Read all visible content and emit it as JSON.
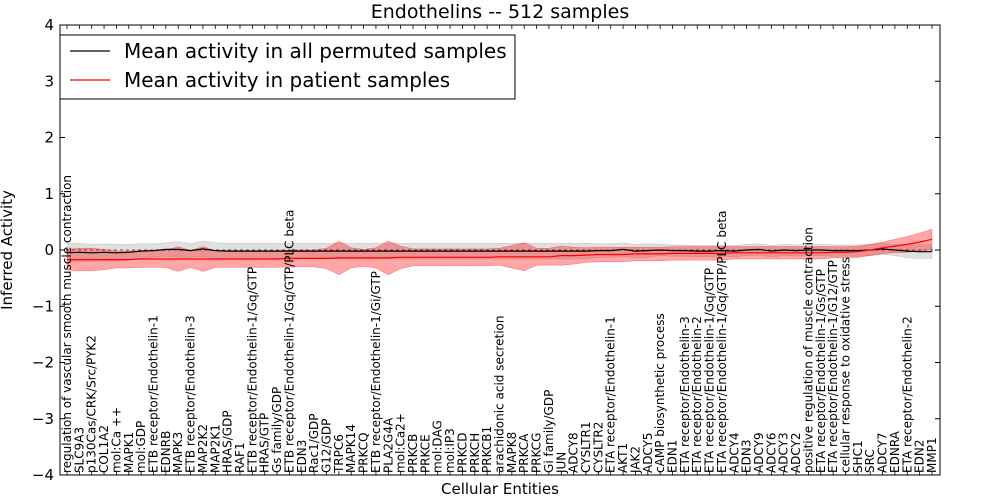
{
  "chart_data": {
    "type": "line",
    "title": "Endothelins -- 512 samples",
    "xlabel": "Cellular Entities",
    "ylabel": "Inferred Activity",
    "ylim": [
      -4,
      4
    ],
    "yticks": [
      -4,
      -3,
      -2,
      -1,
      0,
      1,
      2,
      3,
      4
    ],
    "ytick_labels": [
      "−4",
      "−3",
      "−2",
      "−1",
      "0",
      "1",
      "2",
      "3",
      "4"
    ],
    "legend": {
      "location": "top-left",
      "entries": [
        {
          "label": "Mean activity in all permuted samples",
          "color": "#000000"
        },
        {
          "label": "Mean activity in patient samples",
          "color": "#ff0000"
        }
      ]
    },
    "categories": [
      "regulation of vascular smooth muscle contraction",
      "SLC9A3",
      "p130Cas/CRK/Src/PYK2",
      "COL1A2",
      "mol:Ca ++",
      "MAPK1",
      "mol:GDP",
      "ETB receptor/Endothelin-1",
      "EDNRB",
      "MAPK3",
      "ETB receptor/Endothelin-3",
      "MAP2K2",
      "MAP2K1",
      "HRAS/GDP",
      "RAF1",
      "ETB receptor/Endothelin-1/Gq/GTP",
      "HRAS/GTP",
      "Gs family/GDP",
      "ETB receptor/Endothelin-1/Gq/GTP/PLC beta",
      "EDN3",
      "Rac1/GDP",
      "G12/GDP",
      "TRPC6",
      "MAPK14",
      "PRKCQ",
      "ETB receptor/Endothelin-1/Gi/GTP",
      "PLA2G4A",
      "mol:Ca2+",
      "PRKCB",
      "PRKCE",
      "mol:DAG",
      "mol:IP3",
      "PRKCD",
      "PRKCH",
      "PRKCB1",
      "arachidonic acid secretion",
      "MAPK8",
      "PRKCA",
      "PRKCG",
      "Gi family/GDP",
      "JUN",
      "ADCY8",
      "CYSLTR1",
      "CYSLTR2",
      "ETA receptor/Endothelin-1",
      "AKT1",
      "JAK2",
      "ADCY5",
      "cAMP biosynthetic process",
      "EDN1",
      "ETA receptor/Endothelin-3",
      "ETA receptor/Endothelin-2",
      "ETA receptor/Endothelin-1/Gq/GTP",
      "ETA receptor/Endothelin-1/Gq/GTP/PLC beta",
      "ADCY4",
      "EDN3",
      "ADCY9",
      "ADCY6",
      "ADCY3",
      "ADCY2",
      "positive regulation of muscle contraction",
      "ETA receptor/Endothelin-1/Gs/GTP",
      "ETA receptor/Endothelin-1/G12/GTP",
      "cellular response to oxidative stress",
      "SHC1",
      "SRC",
      "ADCY7",
      "EDNRA",
      "ETA receptor/Endothelin-2",
      "EDN2",
      "MMP1"
    ],
    "series": [
      {
        "name": "Mean activity in all permuted samples",
        "color": "#000000",
        "band_color": "#999999",
        "values": [
          -0.05,
          -0.04,
          -0.05,
          -0.04,
          -0.05,
          -0.04,
          -0.02,
          -0.01,
          0.01,
          0.01,
          -0.01,
          0.02,
          -0.01,
          -0.02,
          -0.02,
          -0.02,
          -0.02,
          -0.02,
          -0.02,
          -0.02,
          -0.02,
          -0.02,
          -0.02,
          -0.02,
          -0.02,
          -0.02,
          -0.02,
          -0.02,
          -0.02,
          -0.02,
          -0.02,
          -0.02,
          -0.02,
          -0.02,
          -0.02,
          -0.02,
          -0.02,
          -0.02,
          -0.02,
          -0.02,
          -0.02,
          -0.02,
          -0.02,
          -0.01,
          -0.01,
          0.01,
          -0.02,
          -0.01,
          0.0,
          -0.01,
          -0.01,
          -0.02,
          -0.02,
          -0.01,
          -0.02,
          0.0,
          0.01,
          -0.02,
          0.0,
          -0.01,
          0.0,
          0.0,
          -0.01,
          -0.01,
          -0.01,
          0.0,
          0.02,
          0.0,
          -0.02,
          -0.03,
          -0.03
        ],
        "spread": [
          0.17,
          0.16,
          0.15,
          0.15,
          0.15,
          0.14,
          0.13,
          0.12,
          0.12,
          0.14,
          0.12,
          0.14,
          0.14,
          0.14,
          0.14,
          0.14,
          0.14,
          0.14,
          0.14,
          0.14,
          0.14,
          0.14,
          0.14,
          0.14,
          0.14,
          0.14,
          0.14,
          0.14,
          0.14,
          0.14,
          0.14,
          0.14,
          0.14,
          0.14,
          0.14,
          0.14,
          0.14,
          0.14,
          0.14,
          0.14,
          0.14,
          0.14,
          0.14,
          0.12,
          0.12,
          0.12,
          0.12,
          0.12,
          0.1,
          0.1,
          0.1,
          0.1,
          0.1,
          0.1,
          0.1,
          0.1,
          0.1,
          0.1,
          0.1,
          0.1,
          0.1,
          0.1,
          0.1,
          0.1,
          0.1,
          0.1,
          0.1,
          0.1,
          0.12,
          0.12,
          0.12
        ]
      },
      {
        "name": "Mean activity in patient samples",
        "color": "#ff0000",
        "band_color": "#ff0000",
        "values": [
          -0.17,
          -0.17,
          -0.17,
          -0.17,
          -0.17,
          -0.17,
          -0.16,
          -0.16,
          -0.16,
          -0.16,
          -0.16,
          -0.16,
          -0.16,
          -0.16,
          -0.16,
          -0.16,
          -0.16,
          -0.16,
          -0.15,
          -0.15,
          -0.15,
          -0.15,
          -0.14,
          -0.14,
          -0.14,
          -0.14,
          -0.14,
          -0.13,
          -0.13,
          -0.13,
          -0.13,
          -0.13,
          -0.13,
          -0.13,
          -0.13,
          -0.12,
          -0.12,
          -0.12,
          -0.12,
          -0.12,
          -0.1,
          -0.1,
          -0.09,
          -0.08,
          -0.08,
          -0.08,
          -0.07,
          -0.07,
          -0.07,
          -0.06,
          -0.06,
          -0.06,
          -0.06,
          -0.06,
          -0.05,
          -0.05,
          -0.05,
          -0.05,
          -0.05,
          -0.05,
          -0.05,
          -0.05,
          -0.04,
          -0.04,
          -0.03,
          0.0,
          0.04,
          0.07,
          0.1,
          0.14,
          0.19
        ],
        "spread": [
          0.18,
          0.2,
          0.2,
          0.18,
          0.15,
          0.15,
          0.15,
          0.15,
          0.15,
          0.22,
          0.15,
          0.22,
          0.15,
          0.15,
          0.15,
          0.15,
          0.15,
          0.15,
          0.15,
          0.15,
          0.15,
          0.18,
          0.3,
          0.18,
          0.15,
          0.18,
          0.3,
          0.2,
          0.15,
          0.15,
          0.15,
          0.15,
          0.15,
          0.15,
          0.15,
          0.15,
          0.2,
          0.25,
          0.15,
          0.15,
          0.17,
          0.15,
          0.13,
          0.13,
          0.13,
          0.13,
          0.12,
          0.12,
          0.12,
          0.12,
          0.12,
          0.12,
          0.12,
          0.12,
          0.11,
          0.11,
          0.11,
          0.11,
          0.11,
          0.11,
          0.11,
          0.11,
          0.1,
          0.1,
          0.1,
          0.1,
          0.1,
          0.12,
          0.14,
          0.16,
          0.18
        ]
      }
    ]
  }
}
